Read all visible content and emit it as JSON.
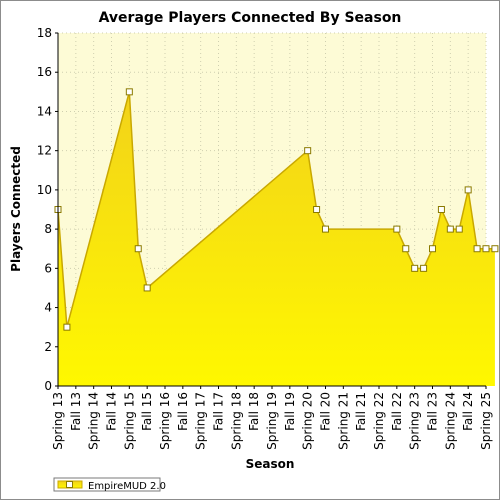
{
  "chart_data": {
    "type": "area",
    "title": "Average Players Connected By Season",
    "xlabel": "Season",
    "ylabel": "Players Connected",
    "ylim": [
      0,
      18
    ],
    "yticks": [
      0,
      2,
      4,
      6,
      8,
      10,
      12,
      14,
      16,
      18
    ],
    "grid": true,
    "legend_position": "bottom-left",
    "categories": [
      "Spring 13",
      "Fall 13",
      "Spring 14",
      "Fall 14",
      "Spring 15",
      "Fall 15",
      "Spring 16",
      "Fall 16",
      "Spring 17",
      "Fall 17",
      "Spring 18",
      "Fall 18",
      "Spring 19",
      "Fall 19",
      "Spring 20",
      "Fall 20",
      "Spring 21",
      "Fall 21",
      "Spring 22",
      "Fall 22",
      "Spring 23",
      "Fall 23",
      "Spring 24",
      "Fall 24",
      "Spring 25"
    ],
    "x": [
      0,
      0.5,
      4,
      4.5,
      5,
      14,
      14.5,
      15,
      19,
      19.5,
      20,
      20.5,
      21,
      21.5,
      22,
      22.5,
      23,
      23.5,
      24,
      24.5
    ],
    "series": [
      {
        "name": "EmpireMUD 2.0",
        "values": [
          9,
          3,
          15,
          7,
          5,
          12,
          9,
          8,
          8,
          7,
          6,
          6,
          7,
          9,
          8,
          8,
          10,
          7,
          7,
          7
        ]
      }
    ],
    "colors": {
      "plot_background": "#fdfbd6",
      "area_top": "#f2d21a",
      "area_bottom": "#fff800",
      "line": "#c9a800",
      "grid": "#cfcfb0"
    }
  }
}
